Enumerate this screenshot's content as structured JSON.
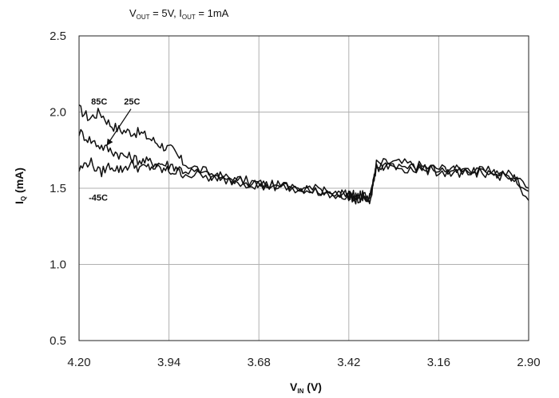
{
  "chart_data": {
    "type": "line",
    "subtitle": {
      "v_main": "V",
      "v_sub": "OUT",
      "v_rest": " = 5V, I",
      "i_sub": "OUT",
      "i_rest": " = 1mA"
    },
    "xlabel": {
      "main": "V",
      "sub": "IN",
      "rest": " (V)"
    },
    "ylabel": {
      "main": "I",
      "sub": "Q",
      "rest": " (mA)"
    },
    "x_reversed": true,
    "xlim": [
      4.2,
      2.9
    ],
    "ylim": [
      0.5,
      2.5
    ],
    "x_ticks": [
      "4.20",
      "3.94",
      "3.68",
      "3.42",
      "3.16",
      "2.90"
    ],
    "y_ticks": [
      "2.5",
      "2.0",
      "1.5",
      "1.0",
      "0.5"
    ],
    "grid": true,
    "series": [
      {
        "name": "85C",
        "x": [
          4.2,
          4.17,
          4.14,
          4.11,
          4.08,
          4.05,
          4.02,
          3.99,
          3.96,
          3.93,
          3.9,
          3.85,
          3.8,
          3.75,
          3.7,
          3.65,
          3.6,
          3.55,
          3.5,
          3.45,
          3.42,
          3.4,
          3.38,
          3.36,
          3.34,
          3.3,
          3.25,
          3.2,
          3.15,
          3.1,
          3.05,
          3.0,
          2.95,
          2.9
        ],
        "y": [
          2.02,
          1.96,
          2.0,
          1.92,
          1.88,
          1.87,
          1.86,
          1.82,
          1.78,
          1.75,
          1.67,
          1.62,
          1.58,
          1.56,
          1.54,
          1.52,
          1.51,
          1.5,
          1.48,
          1.46,
          1.45,
          1.43,
          1.45,
          1.4,
          1.66,
          1.67,
          1.66,
          1.64,
          1.63,
          1.62,
          1.61,
          1.61,
          1.59,
          1.48
        ]
      },
      {
        "name": "25C",
        "x": [
          4.2,
          4.17,
          4.14,
          4.11,
          4.08,
          4.05,
          4.02,
          3.99,
          3.96,
          3.93,
          3.9,
          3.85,
          3.8,
          3.75,
          3.7,
          3.65,
          3.6,
          3.55,
          3.5,
          3.45,
          3.42,
          3.4,
          3.38,
          3.36,
          3.34,
          3.3,
          3.25,
          3.2,
          3.15,
          3.1,
          3.05,
          3.0,
          2.95,
          2.9
        ],
        "y": [
          1.87,
          1.82,
          1.78,
          1.75,
          1.72,
          1.7,
          1.68,
          1.67,
          1.66,
          1.65,
          1.62,
          1.6,
          1.57,
          1.55,
          1.53,
          1.52,
          1.5,
          1.49,
          1.47,
          1.46,
          1.45,
          1.44,
          1.44,
          1.42,
          1.64,
          1.66,
          1.64,
          1.63,
          1.62,
          1.61,
          1.6,
          1.6,
          1.58,
          1.5
        ]
      },
      {
        "name": "-45C",
        "x": [
          4.2,
          4.17,
          4.14,
          4.11,
          4.08,
          4.05,
          4.02,
          3.99,
          3.96,
          3.93,
          3.9,
          3.85,
          3.8,
          3.75,
          3.7,
          3.65,
          3.6,
          3.55,
          3.5,
          3.45,
          3.42,
          3.4,
          3.38,
          3.36,
          3.34,
          3.3,
          3.25,
          3.2,
          3.15,
          3.1,
          3.05,
          3.0,
          2.95,
          2.9
        ],
        "y": [
          1.62,
          1.68,
          1.6,
          1.65,
          1.62,
          1.66,
          1.63,
          1.64,
          1.62,
          1.61,
          1.6,
          1.58,
          1.56,
          1.55,
          1.53,
          1.52,
          1.51,
          1.5,
          1.49,
          1.47,
          1.46,
          1.45,
          1.45,
          1.43,
          1.63,
          1.65,
          1.63,
          1.62,
          1.61,
          1.6,
          1.6,
          1.59,
          1.58,
          1.42
        ]
      }
    ],
    "annotations": [
      {
        "text": "85C",
        "x": 4.165,
        "y": 2.05
      },
      {
        "text": "25C",
        "x": 4.07,
        "y": 2.05
      },
      {
        "text": "-45C",
        "x": 4.172,
        "y": 1.42
      }
    ],
    "arrow": {
      "from_x": 4.05,
      "from_y": 2.02,
      "to_x": 4.12,
      "to_y": 1.78
    },
    "colors": {
      "line": "#111111",
      "grid": "#b0b0b0",
      "axis": "#222222"
    }
  }
}
